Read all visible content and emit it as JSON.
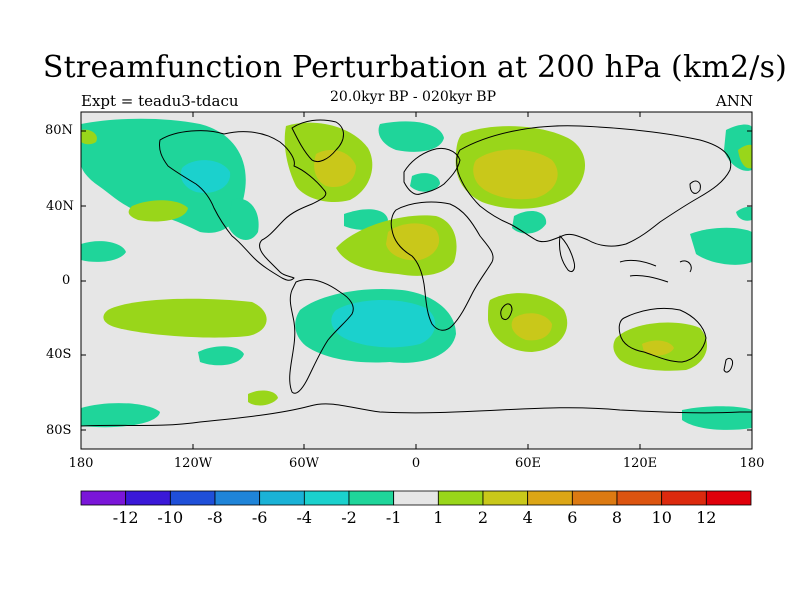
{
  "title": "Streamfunction Perturbation at 200 hPa (km2/s)",
  "subtitle_left": "Expt = teadu3-tdacu",
  "subtitle_center": "20.0kyr BP - 020kyr BP",
  "subtitle_right": "ANN",
  "y_axis_labels": [
    "80N",
    "40N",
    "0",
    "40S",
    "80S"
  ],
  "x_axis_labels": [
    "180",
    "120W",
    "60W",
    "0",
    "60E",
    "120E",
    "180"
  ],
  "colorbar": {
    "colors": [
      "#7a16d8",
      "#3a18d8",
      "#1f4fd8",
      "#1f84d8",
      "#1ab2d6",
      "#1bd1cd",
      "#1fd59a",
      "#e6e6e6",
      "#99d61a",
      "#c9c81a",
      "#dca616",
      "#dc7a12",
      "#dc5410",
      "#dc2a0e",
      "#e0000a"
    ],
    "labels": [
      "-12",
      "-10",
      "-8",
      "-6",
      "-4",
      "-2",
      "-1",
      "1",
      "2",
      "4",
      "6",
      "8",
      "10",
      "12"
    ]
  },
  "map": {
    "ocean_color": "#e6e6e6",
    "level_colors": {
      "neg2": "#1bd1cd",
      "neg1": "#1fd59a",
      "pos1": "#99d61a",
      "pos2": "#c9c81a"
    }
  }
}
